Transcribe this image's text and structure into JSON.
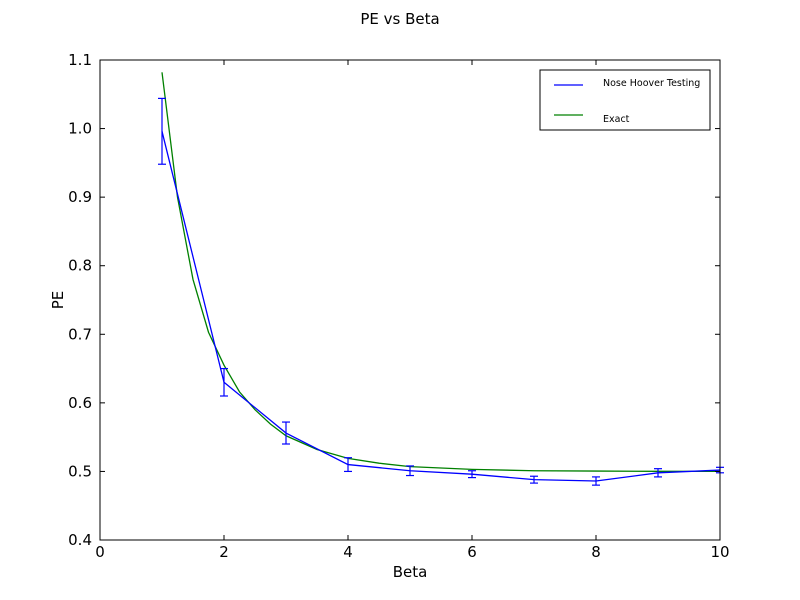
{
  "chart_data": {
    "type": "line",
    "title": "PE vs Beta",
    "xlabel": "Beta",
    "ylabel": "PE",
    "xlim": [
      0,
      10
    ],
    "ylim": [
      0.4,
      1.1
    ],
    "xticks": [
      0,
      2,
      4,
      6,
      8,
      10
    ],
    "yticks": [
      0.4,
      0.5,
      0.6,
      0.7,
      0.8,
      0.9,
      1.0,
      1.1
    ],
    "xtick_labels": [
      "0",
      "2",
      "4",
      "6",
      "8",
      "10"
    ],
    "ytick_labels": [
      "0.4",
      "0.5",
      "0.6",
      "0.7",
      "0.8",
      "0.9",
      "1.0",
      "1.1"
    ],
    "grid": false,
    "legend_position": "top-right",
    "series": [
      {
        "name": "Nose Hoover Testing",
        "color": "#0000ff",
        "x": [
          1,
          2,
          3,
          4,
          5,
          6,
          7,
          8,
          9,
          10
        ],
        "y": [
          0.996,
          0.63,
          0.556,
          0.51,
          0.501,
          0.496,
          0.488,
          0.486,
          0.498,
          0.502
        ],
        "yerr": [
          0.048,
          0.02,
          0.016,
          0.01,
          0.007,
          0.005,
          0.005,
          0.006,
          0.006,
          0.004
        ]
      },
      {
        "name": "Exact",
        "color": "#008000",
        "x": [
          1.0,
          1.25,
          1.5,
          1.75,
          2.0,
          2.25,
          2.5,
          2.75,
          3.0,
          3.5,
          4.0,
          4.5,
          5.0,
          6.0,
          7.0,
          8.0,
          9.0,
          10.0
        ],
        "y": [
          1.082,
          0.9,
          0.78,
          0.703,
          0.655,
          0.616,
          0.59,
          0.569,
          0.552,
          0.532,
          0.519,
          0.512,
          0.507,
          0.503,
          0.501,
          0.5005,
          0.5002,
          0.5001
        ]
      }
    ]
  }
}
